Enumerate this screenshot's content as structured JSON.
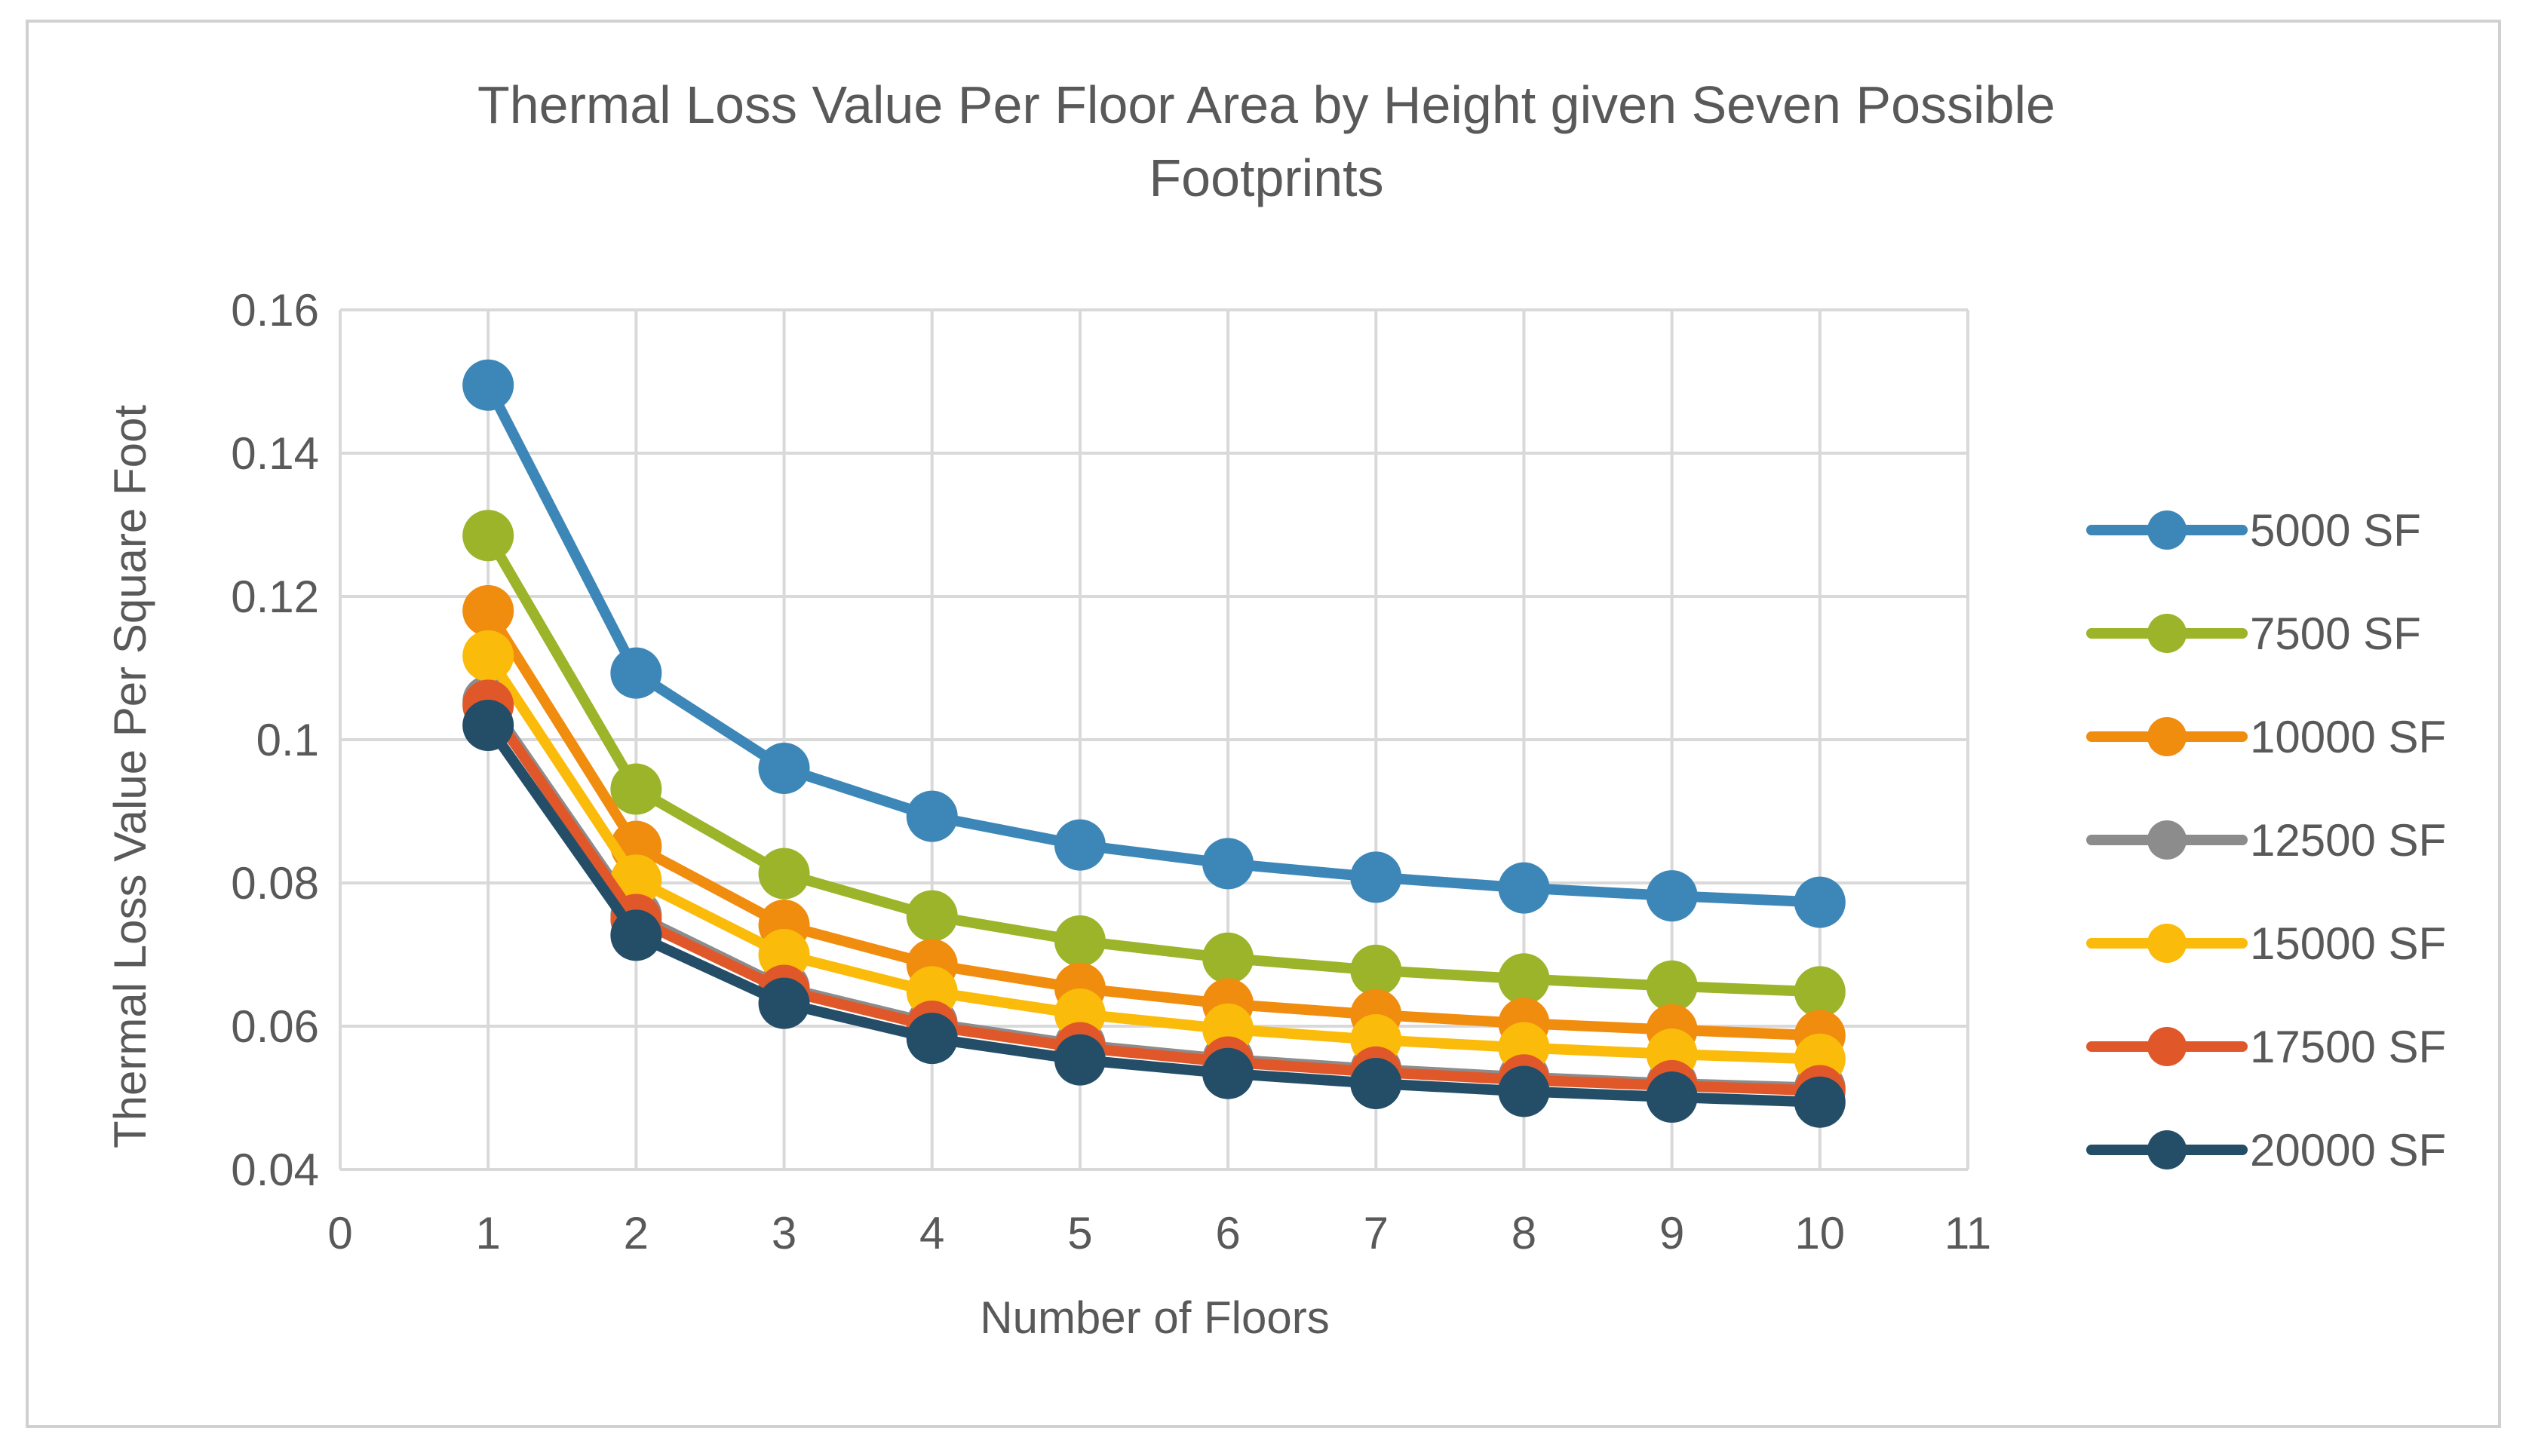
{
  "chart_data": {
    "type": "line",
    "title_lines": [
      "Thermal Loss Value Per Floor Area by Height given Seven Possible",
      "Footprints"
    ],
    "xlabel": "Number of Floors",
    "ylabel": "Thermal Loss Value Per Square Foot",
    "xlim": [
      0,
      11
    ],
    "ylim": [
      0.04,
      0.16
    ],
    "x_ticks": [
      "0",
      "1",
      "2",
      "3",
      "4",
      "5",
      "6",
      "7",
      "8",
      "9",
      "10",
      "11"
    ],
    "y_ticks": [
      "0.04",
      "0.06",
      "0.08",
      "0.1",
      "0.12",
      "0.14",
      "0.16"
    ],
    "y_tick_values": [
      0.04,
      0.06,
      0.08,
      0.1,
      0.12,
      0.14,
      0.16
    ],
    "x": [
      1,
      2,
      3,
      4,
      5,
      6,
      7,
      8,
      9,
      10
    ],
    "grid": true,
    "legend_position": "right",
    "series": [
      {
        "name": "5000 SF",
        "color": "#3d87b8",
        "values": [
          0.1495,
          0.1093,
          0.096,
          0.0893,
          0.0853,
          0.0827,
          0.0808,
          0.0793,
          0.0782,
          0.0773
        ]
      },
      {
        "name": "7500 SF",
        "color": "#9bb42a",
        "values": [
          0.1285,
          0.0931,
          0.0813,
          0.0754,
          0.0719,
          0.0695,
          0.0678,
          0.0666,
          0.0656,
          0.0648
        ]
      },
      {
        "name": "10000 SF",
        "color": "#f08c0e",
        "values": [
          0.118,
          0.0851,
          0.0741,
          0.0686,
          0.0653,
          0.0631,
          0.0616,
          0.0604,
          0.0595,
          0.0587
        ]
      },
      {
        "name": "12500 SF",
        "color": "#8c8c8c",
        "values": [
          0.1054,
          0.0755,
          0.0654,
          0.0604,
          0.0574,
          0.0554,
          0.054,
          0.0529,
          0.052,
          0.0514
        ]
      },
      {
        "name": "15000 SF",
        "color": "#fbbb0a",
        "values": [
          0.1117,
          0.0804,
          0.07,
          0.0648,
          0.0617,
          0.0596,
          0.0581,
          0.057,
          0.0561,
          0.0554
        ]
      },
      {
        "name": "17500 SF",
        "color": "#e0582a",
        "values": [
          0.1048,
          0.0749,
          0.065,
          0.06,
          0.057,
          0.055,
          0.0536,
          0.0525,
          0.0517,
          0.051
        ]
      },
      {
        "name": "20000 SF",
        "color": "#244e68",
        "values": [
          0.102,
          0.0727,
          0.0632,
          0.0583,
          0.0553,
          0.0534,
          0.052,
          0.0509,
          0.0501,
          0.0494
        ]
      }
    ]
  }
}
